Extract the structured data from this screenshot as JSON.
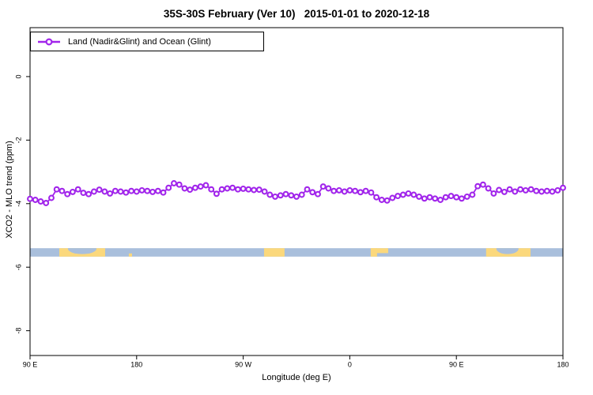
{
  "figure": {
    "title": "35S-30S February (Ver 10)   2015-01-01 to 2020-12-18",
    "legend": {
      "label": "Land (Nadir&Glint) and Ocean (Glint)"
    }
  },
  "chart_data": {
    "type": "line",
    "title": "35S-30S February (Ver 10)   2015-01-01 to 2020-12-18",
    "xlabel": "Longitude (deg E)",
    "ylabel": "XCO2 - MLO trend (ppm)",
    "grid": "off",
    "legend_position": "top-left-inside",
    "xlim": [
      0,
      450
    ],
    "ylim": [
      -8.78,
      1.54
    ],
    "x_axis_note": "axis wraps 450 degrees starting at 90E: 90E -> 180 -> 90W -> 0 -> 90E -> 180",
    "x_ticks": [
      {
        "deg": 0,
        "label": "90 E"
      },
      {
        "deg": 90,
        "label": "180"
      },
      {
        "deg": 180,
        "label": "90 W"
      },
      {
        "deg": 270,
        "label": "0"
      },
      {
        "deg": 360,
        "label": "90 E"
      },
      {
        "deg": 450,
        "label": "180"
      }
    ],
    "y_ticks": [
      {
        "val": 0,
        "label": "0"
      },
      {
        "val": -2,
        "label": "-2"
      },
      {
        "val": -4,
        "label": "-4"
      },
      {
        "val": -6,
        "label": "-6"
      },
      {
        "val": -8,
        "label": "-8"
      }
    ],
    "series": [
      {
        "name": "Land (Nadir&Glint) and Ocean (Glint)",
        "color": "#A125EB",
        "marker": "open-circle",
        "x_start_deg": 0,
        "x_step_deg": 4.5,
        "values": [
          -3.85,
          -3.88,
          -3.93,
          -3.98,
          -3.82,
          -3.55,
          -3.6,
          -3.7,
          -3.63,
          -3.55,
          -3.66,
          -3.7,
          -3.62,
          -3.56,
          -3.62,
          -3.68,
          -3.6,
          -3.62,
          -3.65,
          -3.6,
          -3.62,
          -3.58,
          -3.6,
          -3.63,
          -3.6,
          -3.65,
          -3.5,
          -3.36,
          -3.4,
          -3.52,
          -3.56,
          -3.5,
          -3.46,
          -3.42,
          -3.55,
          -3.69,
          -3.55,
          -3.52,
          -3.5,
          -3.55,
          -3.53,
          -3.55,
          -3.57,
          -3.56,
          -3.62,
          -3.72,
          -3.78,
          -3.74,
          -3.7,
          -3.74,
          -3.78,
          -3.72,
          -3.55,
          -3.64,
          -3.7,
          -3.46,
          -3.52,
          -3.6,
          -3.58,
          -3.62,
          -3.58,
          -3.6,
          -3.64,
          -3.6,
          -3.65,
          -3.8,
          -3.88,
          -3.9,
          -3.82,
          -3.76,
          -3.72,
          -3.68,
          -3.72,
          -3.78,
          -3.84,
          -3.8,
          -3.84,
          -3.88,
          -3.8,
          -3.76,
          -3.8,
          -3.84,
          -3.78,
          -3.72,
          -3.45,
          -3.4,
          -3.52,
          -3.68,
          -3.57,
          -3.63,
          -3.55,
          -3.62,
          -3.55,
          -3.58,
          -3.55,
          -3.6,
          -3.62,
          -3.6,
          -3.62,
          -3.58,
          -3.5
        ]
      }
    ],
    "map_band": {
      "description": "land/ocean strip for latitude band 35S-30S",
      "y_top_ppm": -5.4,
      "y_bottom_ppm": -5.67,
      "ocean_color": "#A9BFDC",
      "land_color": "#FBD87C",
      "land_segments": [
        {
          "start": 24.7,
          "end": 63.4,
          "part": "full",
          "label": "australia"
        },
        {
          "start": 83.4,
          "end": 86.1,
          "part": "bottom",
          "label": "new-zealand"
        },
        {
          "start": 197.6,
          "end": 214.9,
          "part": "full",
          "label": "south-america"
        },
        {
          "start": 287.7,
          "end": 302.4,
          "part": "top",
          "label": "south-africa"
        },
        {
          "start": 287.7,
          "end": 293.0,
          "part": "full",
          "label": "south-africa-cape"
        },
        {
          "start": 385.1,
          "end": 422.6,
          "part": "full",
          "label": "australia-2"
        }
      ],
      "ocean_intrusions": [
        {
          "start": 32.0,
          "end": 56.1,
          "label": "great-australian-bight"
        },
        {
          "start": 393.8,
          "end": 412.5,
          "label": "great-australian-bight-2"
        }
      ]
    }
  }
}
